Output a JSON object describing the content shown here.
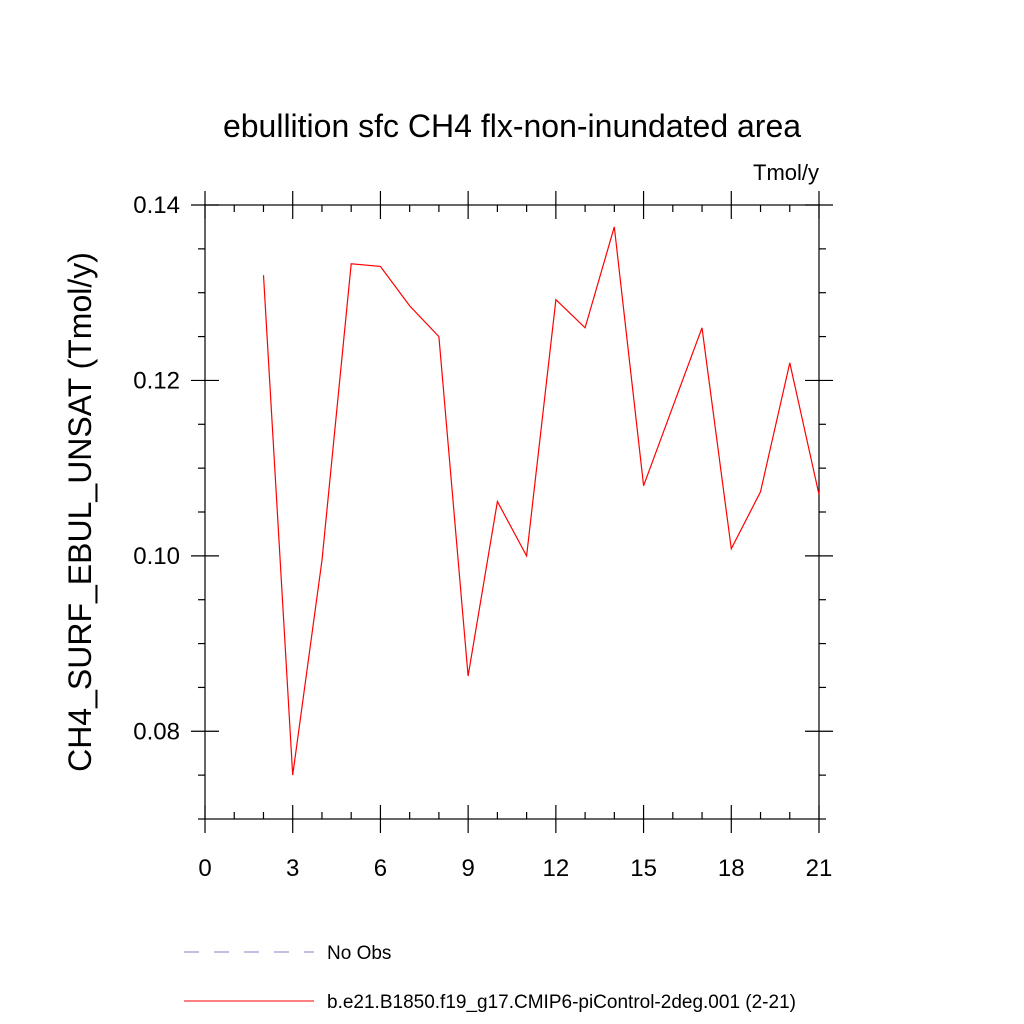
{
  "chart_data": {
    "type": "line",
    "title": "ebullition sfc CH4 flx-non-inundated area",
    "units_label": "Tmol/y",
    "ylabel": "CH4_SURF_EBUL_UNSAT  (Tmol/y)",
    "xlabel": "",
    "xlim": [
      0,
      21
    ],
    "ylim": [
      0.07,
      0.14
    ],
    "x_ticks": [
      0,
      3,
      6,
      9,
      12,
      15,
      18,
      21
    ],
    "x_tick_labels": [
      "0",
      "3",
      "6",
      "9",
      "12",
      "15",
      "18",
      "21"
    ],
    "y_ticks": [
      0.08,
      0.1,
      0.12,
      0.14
    ],
    "y_tick_labels": [
      "0.08",
      "0.10",
      "0.12",
      "0.14"
    ],
    "grid": false,
    "legend_position": "bottom",
    "series": [
      {
        "name": "b.e21.B1850.f19_g17.CMIP6-piControl-2deg.001 (2-21)",
        "color": "#ff0000",
        "style": "solid",
        "x": [
          2,
          3,
          4,
          5,
          6,
          7,
          8,
          9,
          10,
          11,
          12,
          13,
          14,
          15,
          16,
          17,
          18,
          19,
          20,
          21
        ],
        "values": [
          0.132,
          0.075,
          0.0995,
          0.1333,
          0.133,
          0.1285,
          0.125,
          0.0863,
          0.1062,
          0.1,
          0.1292,
          0.126,
          0.1375,
          0.108,
          0.117,
          0.126,
          0.1008,
          0.1073,
          0.122,
          0.107
        ]
      }
    ],
    "legend": [
      {
        "label": "No Obs",
        "color": "#8080c0",
        "style": "dashed"
      },
      {
        "label": "b.e21.B1850.f19_g17.CMIP6-piControl-2deg.001 (2-21)",
        "color": "#ff0000",
        "style": "solid"
      }
    ]
  }
}
